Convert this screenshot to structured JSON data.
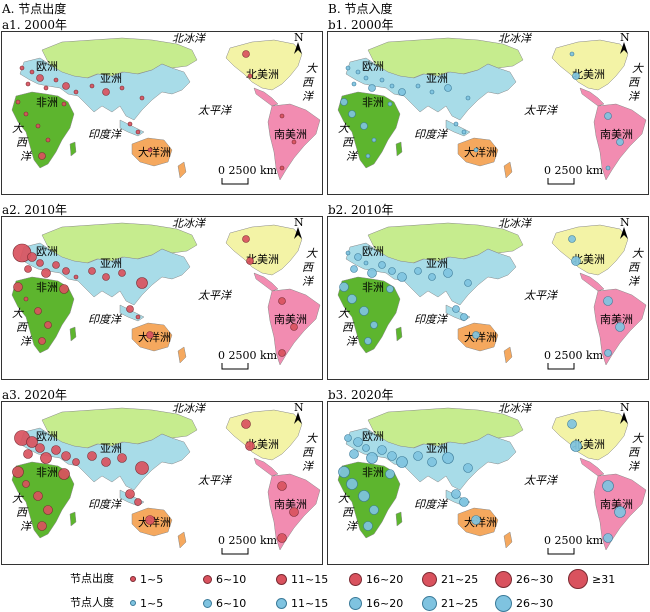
{
  "columns": [
    {
      "title": "A. 节点出度",
      "color": "#d9525e",
      "stroke": "#7a2a32"
    },
    {
      "title": "B. 节点入度",
      "color": "#7fc3e0",
      "stroke": "#3a7a99"
    }
  ],
  "panels": [
    {
      "title": "a1. 2000年",
      "col": 0,
      "row": 0
    },
    {
      "title": "a2. 2010年",
      "col": 0,
      "row": 1
    },
    {
      "title": "a3. 2020年",
      "col": 0,
      "row": 2
    },
    {
      "title": "b1. 2000年",
      "col": 1,
      "row": 0
    },
    {
      "title": "b2. 2010年",
      "col": 1,
      "row": 1
    },
    {
      "title": "b3. 2020年",
      "col": 1,
      "row": 2
    }
  ],
  "map_labels": {
    "arctic": "北冰洋",
    "europe": "欧洲",
    "asia": "亚洲",
    "africa": "非洲",
    "north_america": "北美洲",
    "south_america": "南美洲",
    "oceania": "大洋洲",
    "indian_ocean": "印度洋",
    "pacific": "太平洋",
    "atlantic_w": [
      "大",
      "西",
      "洋"
    ],
    "atlantic_e": [
      "大",
      "西",
      "洋"
    ],
    "north": "N",
    "scale": "0  2500 km"
  },
  "continent_colors": {
    "europe_asia": "#a8dce8",
    "russia": "#c6ec8e",
    "africa": "#5db52e",
    "north_america": "#f3f3a6",
    "south_america": "#f28cb1",
    "oceania": "#f5a85e"
  },
  "legend": {
    "out_title": "节点出度",
    "in_title": "节点人度",
    "out_items": [
      "1~5",
      "6~10",
      "11~15",
      "16~20",
      "21~25",
      "26~30",
      "≥31"
    ],
    "in_items": [
      "1~5",
      "6~10",
      "11~15",
      "16~20",
      "21~25",
      "26~30"
    ]
  },
  "node_levels": {
    "a1": [
      1,
      1,
      2,
      1,
      1,
      1,
      2,
      1,
      1,
      1,
      1,
      2,
      1,
      1,
      1,
      2,
      1,
      1,
      1,
      1,
      1,
      2,
      1,
      1,
      1,
      1
    ],
    "a2": [
      7,
      3,
      2,
      2,
      3,
      2,
      2,
      3,
      1,
      2,
      2,
      2,
      3,
      1,
      2,
      2,
      2,
      4,
      2,
      1,
      2,
      2,
      2,
      2,
      2,
      2
    ],
    "a3": [
      6,
      4,
      3,
      3,
      4,
      3,
      3,
      4,
      2,
      3,
      3,
      3,
      4,
      2,
      3,
      3,
      3,
      5,
      3,
      2,
      3,
      3,
      3,
      3,
      3,
      3
    ],
    "b1": [
      1,
      1,
      1,
      1,
      2,
      1,
      1,
      2,
      2,
      2,
      1,
      1,
      1,
      2,
      1,
      1,
      2,
      1,
      1,
      1,
      1,
      1,
      2,
      2,
      2,
      1
    ],
    "b2": [
      1,
      2,
      1,
      2,
      3,
      2,
      2,
      3,
      3,
      3,
      2,
      2,
      2,
      3,
      2,
      2,
      3,
      2,
      2,
      2,
      2,
      2,
      3,
      3,
      3,
      2
    ],
    "b3": [
      2,
      3,
      2,
      3,
      4,
      3,
      3,
      4,
      4,
      4,
      3,
      3,
      3,
      4,
      3,
      3,
      4,
      3,
      3,
      3,
      3,
      3,
      4,
      4,
      4,
      3
    ]
  }
}
